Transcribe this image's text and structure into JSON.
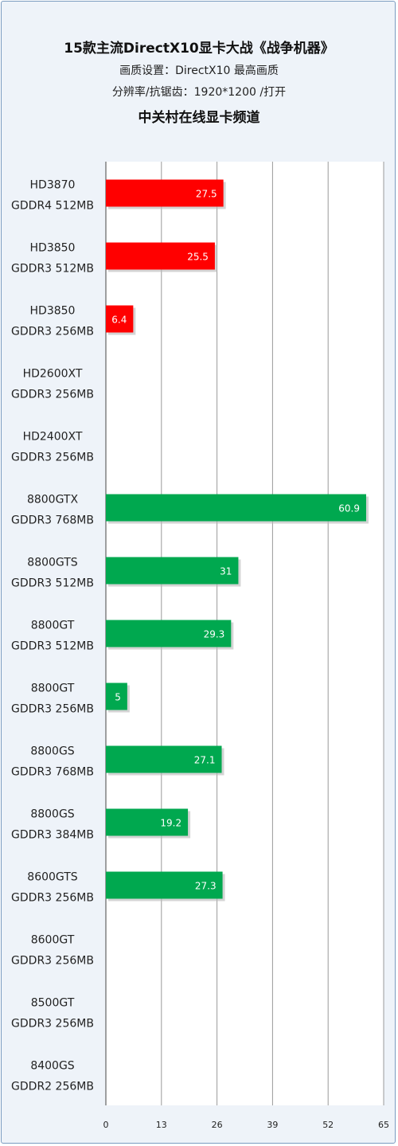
{
  "header": {
    "title": "15款主流DirectX10显卡大战《战争机器》",
    "subtitle1": "画质设置：DirectX10 最高画质",
    "subtitle2": "分辨率/抗锯齿：1920*1200 /打开",
    "source": "中关村在线显卡频道"
  },
  "colors": {
    "ati": "#ff0000",
    "nvidia": "#00a84f",
    "grid": "#9a9a9a",
    "frame": "#7a9cc0",
    "panel": "#eef3f9"
  },
  "chart_data": {
    "type": "bar",
    "orientation": "horizontal",
    "categories": [
      [
        "HD3870",
        "GDDR4 512MB"
      ],
      [
        "HD3850",
        "GDDR3 512MB"
      ],
      [
        "HD3850",
        "GDDR3 256MB"
      ],
      [
        "HD2600XT",
        "GDDR3 256MB"
      ],
      [
        "HD2400XT",
        "GDDR3 256MB"
      ],
      [
        "8800GTX",
        "GDDR3 768MB"
      ],
      [
        "8800GTS",
        "GDDR3 512MB"
      ],
      [
        "8800GT",
        "GDDR3 512MB"
      ],
      [
        "8800GT",
        "GDDR3 256MB"
      ],
      [
        "8800GS",
        "GDDR3 768MB"
      ],
      [
        "8800GS",
        "GDDR3 384MB"
      ],
      [
        "8600GTS",
        "GDDR3 256MB"
      ],
      [
        "8600GT",
        "GDDR3 256MB"
      ],
      [
        "8500GT",
        "GDDR3 256MB"
      ],
      [
        "8400GS",
        "GDDR2 256MB"
      ]
    ],
    "values": [
      27.5,
      25.5,
      6.4,
      null,
      null,
      60.9,
      31,
      29.3,
      5,
      27.1,
      19.2,
      27.3,
      null,
      null,
      null
    ],
    "value_labels": [
      "27.5",
      "25.5",
      "6.4",
      "",
      "",
      "60.9",
      "31",
      "29.3",
      "5",
      "27.1",
      "19.2",
      "27.3",
      "",
      "",
      ""
    ],
    "vendor": [
      "ati",
      "ati",
      "ati",
      "ati",
      "ati",
      "nvidia",
      "nvidia",
      "nvidia",
      "nvidia",
      "nvidia",
      "nvidia",
      "nvidia",
      "nvidia",
      "nvidia",
      "nvidia"
    ],
    "xlim": [
      0,
      65
    ],
    "xticks": [
      0,
      13,
      26,
      39,
      52,
      65
    ],
    "grid": true,
    "title": "15款主流DirectX10显卡大战《战争机器》",
    "xlabel": "",
    "ylabel": ""
  }
}
